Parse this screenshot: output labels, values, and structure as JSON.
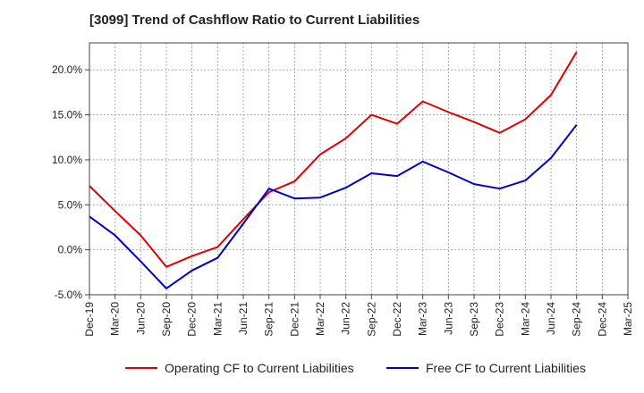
{
  "title": "[3099]  Trend of Cashflow Ratio to Current Liabilities",
  "chart_data": {
    "type": "line",
    "title": "[3099]  Trend of Cashflow Ratio to Current Liabilities",
    "xlabel": "",
    "ylabel": "",
    "categories": [
      "Dec-19",
      "Mar-20",
      "Jun-20",
      "Sep-20",
      "Dec-20",
      "Mar-21",
      "Jun-21",
      "Sep-21",
      "Dec-21",
      "Mar-22",
      "Jun-22",
      "Sep-22",
      "Dec-22",
      "Mar-23",
      "Jun-23",
      "Sep-23",
      "Dec-23",
      "Mar-24",
      "Jun-24",
      "Sep-24",
      "Dec-24",
      "Mar-25"
    ],
    "y_ticks": [
      -5,
      0,
      5,
      10,
      15,
      20
    ],
    "y_tick_labels": [
      "-5.0%",
      "0.0%",
      "5.0%",
      "10.0%",
      "15.0%",
      "20.0%"
    ],
    "ylim": [
      -5,
      23
    ],
    "grid": true,
    "legend_position": "bottom",
    "series": [
      {
        "name": "Operating CF to Current Liabilities",
        "color": "#e00000",
        "values": [
          7.1,
          4.3,
          1.6,
          -1.9,
          -0.7,
          0.3,
          3.4,
          6.4,
          7.6,
          10.6,
          12.4,
          15.0,
          14.0,
          16.5,
          15.3,
          14.2,
          13.0,
          14.5,
          17.2,
          22.0,
          null,
          null
        ]
      },
      {
        "name": "Free CF to Current Liabilities",
        "color": "#0000cc",
        "values": [
          3.7,
          1.6,
          -1.3,
          -4.3,
          -2.3,
          -0.9,
          2.9,
          6.8,
          5.7,
          5.8,
          6.9,
          8.5,
          8.2,
          9.8,
          8.6,
          7.3,
          6.8,
          7.7,
          10.2,
          13.9,
          null,
          null
        ]
      }
    ]
  }
}
